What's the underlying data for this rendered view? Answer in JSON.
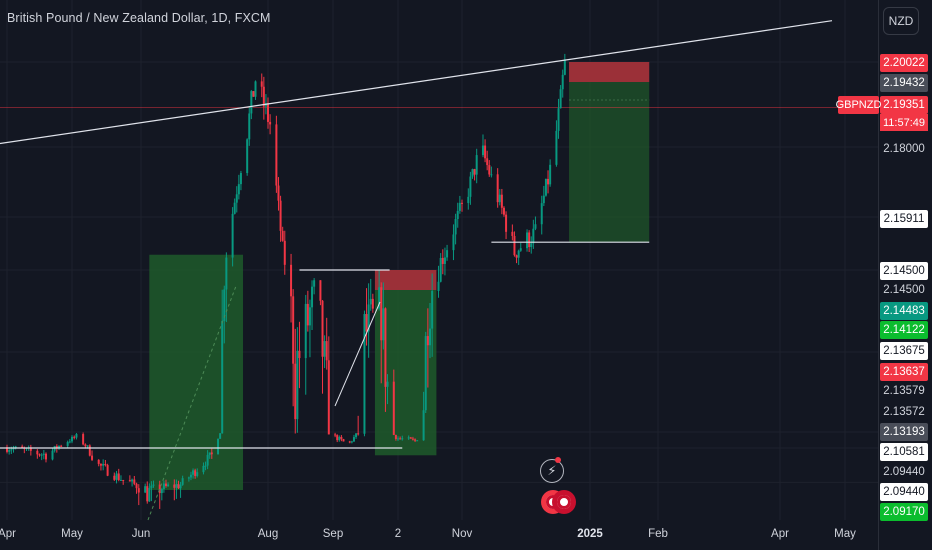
{
  "header": {
    "title": "British Pound / New Zealand Dollar, 1D, FXCM",
    "currency_button": "NZD"
  },
  "symbol_badge": "GBPNZD",
  "countdown": "11:57:49",
  "colors": {
    "background": "#131722",
    "up": "#089981",
    "down": "#f23645",
    "grid": "#1e222d",
    "long_zone": "#1f5a2a",
    "short_zone": "#a2323a",
    "line": "#e0e3eb"
  },
  "price_scale": [
    {
      "text": "2.20022",
      "price": 2.20022,
      "style": "red"
    },
    {
      "text": "2.19432",
      "price": 2.19432,
      "style": "gray"
    },
    {
      "text": "2.19351",
      "price": 2.19351,
      "style": "red"
    },
    {
      "text": "2.18000",
      "price": 2.18,
      "style": "none"
    },
    {
      "text": "2.15911",
      "price": 2.15911,
      "style": "white"
    },
    {
      "text": "2.14500",
      "price": 2.145,
      "style": "white"
    },
    {
      "text": "2.14500",
      "price": 2.145,
      "style": "none"
    },
    {
      "text": "2.14483",
      "price": 2.14483,
      "style": "green"
    },
    {
      "text": "2.14122",
      "price": 2.14122,
      "style": "lime"
    },
    {
      "text": "2.13675",
      "price": 2.13675,
      "style": "white"
    },
    {
      "text": "2.13637",
      "price": 2.13637,
      "style": "red"
    },
    {
      "text": "2.13579",
      "price": 2.13579,
      "style": "none"
    },
    {
      "text": "2.13572",
      "price": 2.13572,
      "style": "none"
    },
    {
      "text": "2.13193",
      "price": 2.13193,
      "style": "gray"
    },
    {
      "text": "2.10581",
      "price": 2.10581,
      "style": "white"
    },
    {
      "text": "2.09440",
      "price": 2.0944,
      "style": "none"
    },
    {
      "text": "2.09440",
      "price": 2.0944,
      "style": "white"
    },
    {
      "text": "2.09170",
      "price": 2.0917,
      "style": "lime"
    }
  ],
  "time_axis": [
    {
      "label": "Apr",
      "bold": false
    },
    {
      "label": "May",
      "bold": false
    },
    {
      "label": "Jun",
      "bold": false
    },
    {
      "label": "Aug",
      "bold": false
    },
    {
      "label": "Sep",
      "bold": false
    },
    {
      "label": "2",
      "bold": false
    },
    {
      "label": "Nov",
      "bold": false
    },
    {
      "label": "2025",
      "bold": true
    },
    {
      "label": "Feb",
      "bold": false
    },
    {
      "label": "Apr",
      "bold": false
    },
    {
      "label": "May",
      "bold": false
    }
  ],
  "chart_data": {
    "type": "candlestick",
    "title": "British Pound / New Zealand Dollar, 1D, FXCM",
    "current_price": 2.19351,
    "ylim": [
      2.085,
      2.225
    ],
    "price_path": [
      [
        "2024-04-01",
        2.115
      ],
      [
        "2024-04-20",
        2.11
      ],
      [
        "2024-05-03",
        2.127
      ],
      [
        "2024-05-12",
        2.105
      ],
      [
        "2024-05-25",
        2.095
      ],
      [
        "2024-06-05",
        2.09
      ],
      [
        "2024-06-20",
        2.093
      ],
      [
        "2024-07-05",
        2.11
      ],
      [
        "2024-07-12",
        2.15
      ],
      [
        "2024-07-20",
        2.178
      ],
      [
        "2024-07-26",
        2.195
      ],
      [
        "2024-08-02",
        2.185
      ],
      [
        "2024-08-08",
        2.15
      ],
      [
        "2024-08-14",
        2.135
      ],
      [
        "2024-08-24",
        2.142
      ],
      [
        "2024-09-01",
        2.128
      ],
      [
        "2024-09-08",
        2.118
      ],
      [
        "2024-09-16",
        2.138
      ],
      [
        "2024-09-24",
        2.14
      ],
      [
        "2024-10-02",
        2.125
      ],
      [
        "2024-10-10",
        2.122
      ],
      [
        "2024-10-16",
        2.14
      ],
      [
        "2024-10-24",
        2.15
      ],
      [
        "2024-11-03",
        2.165
      ],
      [
        "2024-11-10",
        2.18
      ],
      [
        "2024-11-18",
        2.165
      ],
      [
        "2024-11-26",
        2.15
      ],
      [
        "2024-12-06",
        2.155
      ],
      [
        "2024-12-12",
        2.17
      ],
      [
        "2024-12-18",
        2.19
      ],
      [
        "2024-12-20",
        2.2
      ],
      [
        "2024-12-23",
        2.195
      ]
    ],
    "drawings": {
      "trendline": {
        "from": [
          "2024-03-25",
          2.1805
        ],
        "to": [
          "2025-04-25",
          2.2155
        ]
      },
      "support_line_left": {
        "from": [
          "2024-03-25",
          2.1142
        ],
        "to": [
          "2024-10-04",
          2.1142
        ]
      },
      "resistance_line_mid": {
        "from": [
          "2024-08-16",
          2.1452
        ],
        "to": [
          "2024-09-28",
          2.1452
        ]
      },
      "support_line_right": {
        "from": [
          "2024-11-15",
          2.1525
        ],
        "to": [
          "2025-01-28",
          2.1525
        ]
      },
      "long_zone_left": {
        "from": "2024-06-05",
        "to": "2024-07-20",
        "low": 2.09,
        "high": 2.1492
      },
      "long_zone_mid": {
        "from": "2024-09-21",
        "to": "2024-10-20",
        "low": 2.11,
        "high": 2.142
      },
      "short_zone_mid": {
        "from": "2024-09-21",
        "to": "2024-10-20",
        "low": 2.142,
        "high": 2.1452
      },
      "short_trade": {
        "from": "2024-12-22",
        "to": "2025-01-28",
        "stop": 2.2002,
        "entry": 2.1943,
        "target": 2.1525
      }
    }
  }
}
